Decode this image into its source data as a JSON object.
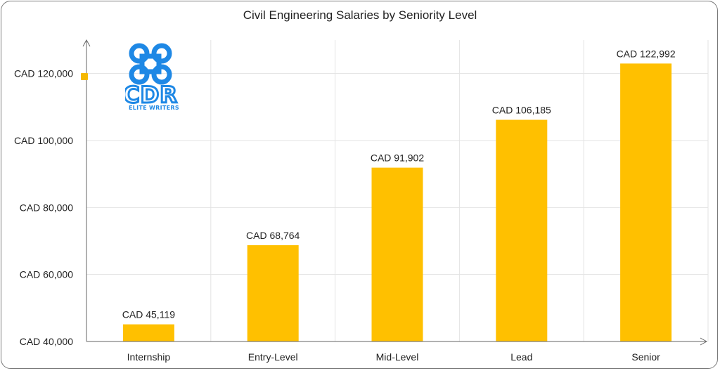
{
  "chart_data": {
    "type": "bar",
    "title": "Civil Engineering Salaries by Seniority Level",
    "categories": [
      "Internship",
      "Entry-Level",
      "Mid-Level",
      "Lead",
      "Senior"
    ],
    "values": [
      45119,
      68764,
      91902,
      106185,
      122992
    ],
    "data_labels": [
      "CAD 45,119",
      "CAD 68,764",
      "CAD 91,902",
      "CAD 106,185",
      "CAD 122,992"
    ],
    "yticks": [
      40000,
      60000,
      80000,
      100000,
      120000
    ],
    "ytick_labels": [
      "CAD 40,000",
      "CAD 60,000",
      "CAD 80,000",
      "CAD 100,000",
      "CAD 120,000"
    ],
    "ylim": [
      40000,
      130000
    ],
    "xlabel": "",
    "ylabel": "",
    "grid": true,
    "bar_color": "#ffc000"
  },
  "logo": {
    "text": "CDR",
    "tagline": "ELITE WRITERS",
    "color": "#1e88e5",
    "icon": "command-key-icon"
  }
}
